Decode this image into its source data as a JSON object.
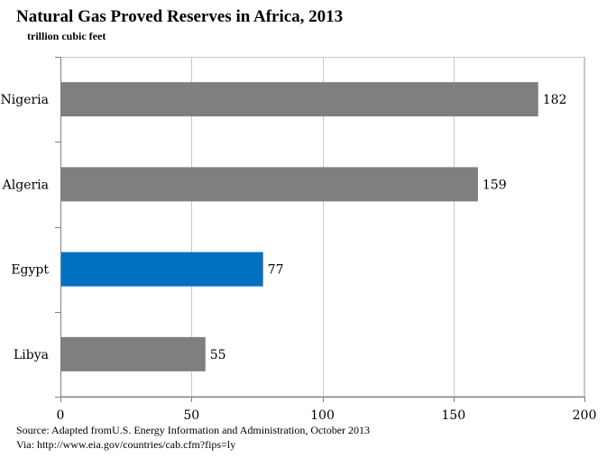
{
  "chart_data": {
    "type": "bar",
    "orientation": "horizontal",
    "title": "Natural Gas Proved Reserves in Africa, 2013",
    "subtitle": "trillion cubic feet",
    "categories": [
      "Nigeria",
      "Algeria",
      "Egypt",
      "Libya"
    ],
    "values": [
      182,
      159,
      77,
      55
    ],
    "bar_colors": [
      "#7f7f7f",
      "#7f7f7f",
      "#0070c0",
      "#7f7f7f"
    ],
    "xlim": [
      0,
      200
    ],
    "xticks": [
      0,
      50,
      100,
      150,
      200
    ],
    "grid": true,
    "data_labels": true,
    "legend": "none"
  },
  "source": {
    "line1": "Source: Adapted fromU.S. Energy Information and Administration, October 2013",
    "line2": "Via: http://www.eia.gov/countries/cab.cfm?fips=ly"
  }
}
